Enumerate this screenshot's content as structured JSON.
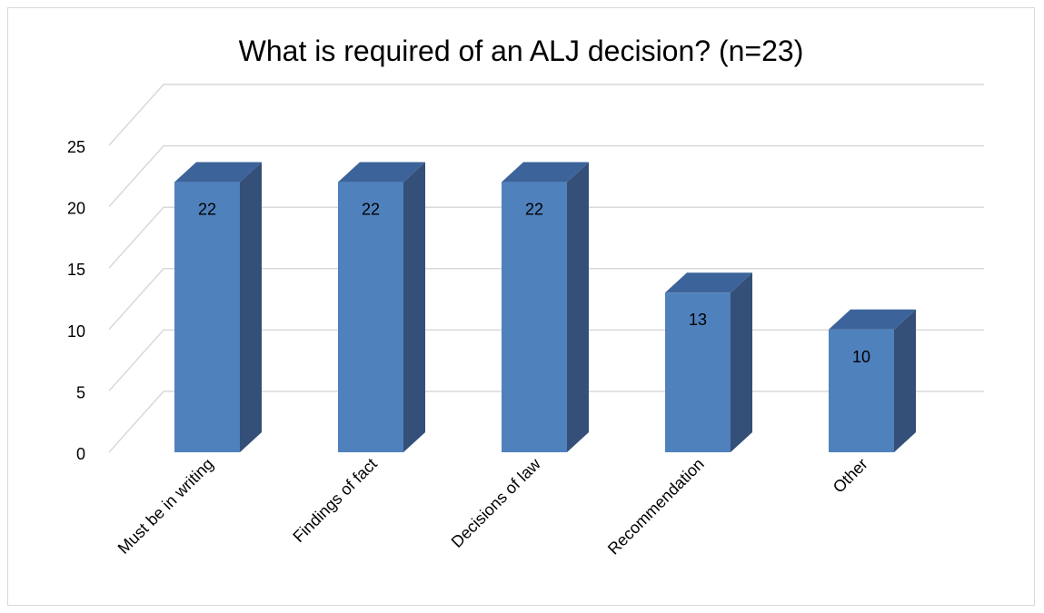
{
  "chart_data": {
    "type": "bar",
    "title": "What is required of an ALJ decision? (n=23)",
    "categories": [
      "Must be in writing",
      "Findings of fact",
      "Decisions of law",
      "Recommendation",
      "Other"
    ],
    "values": [
      22,
      22,
      22,
      13,
      10
    ],
    "data_labels": [
      "22",
      "22",
      "22",
      "13",
      "10"
    ],
    "y_ticks": [
      "0",
      "5",
      "10",
      "15",
      "20",
      "25"
    ],
    "ylim": [
      0,
      25
    ],
    "grid": true,
    "legend": "none",
    "style": "3d-column"
  },
  "colors": {
    "bar_front": "#4f81bd",
    "bar_side": "#345079",
    "bar_top": "#3c649a",
    "gridline": "#d9d9d9",
    "text": "#000000"
  }
}
